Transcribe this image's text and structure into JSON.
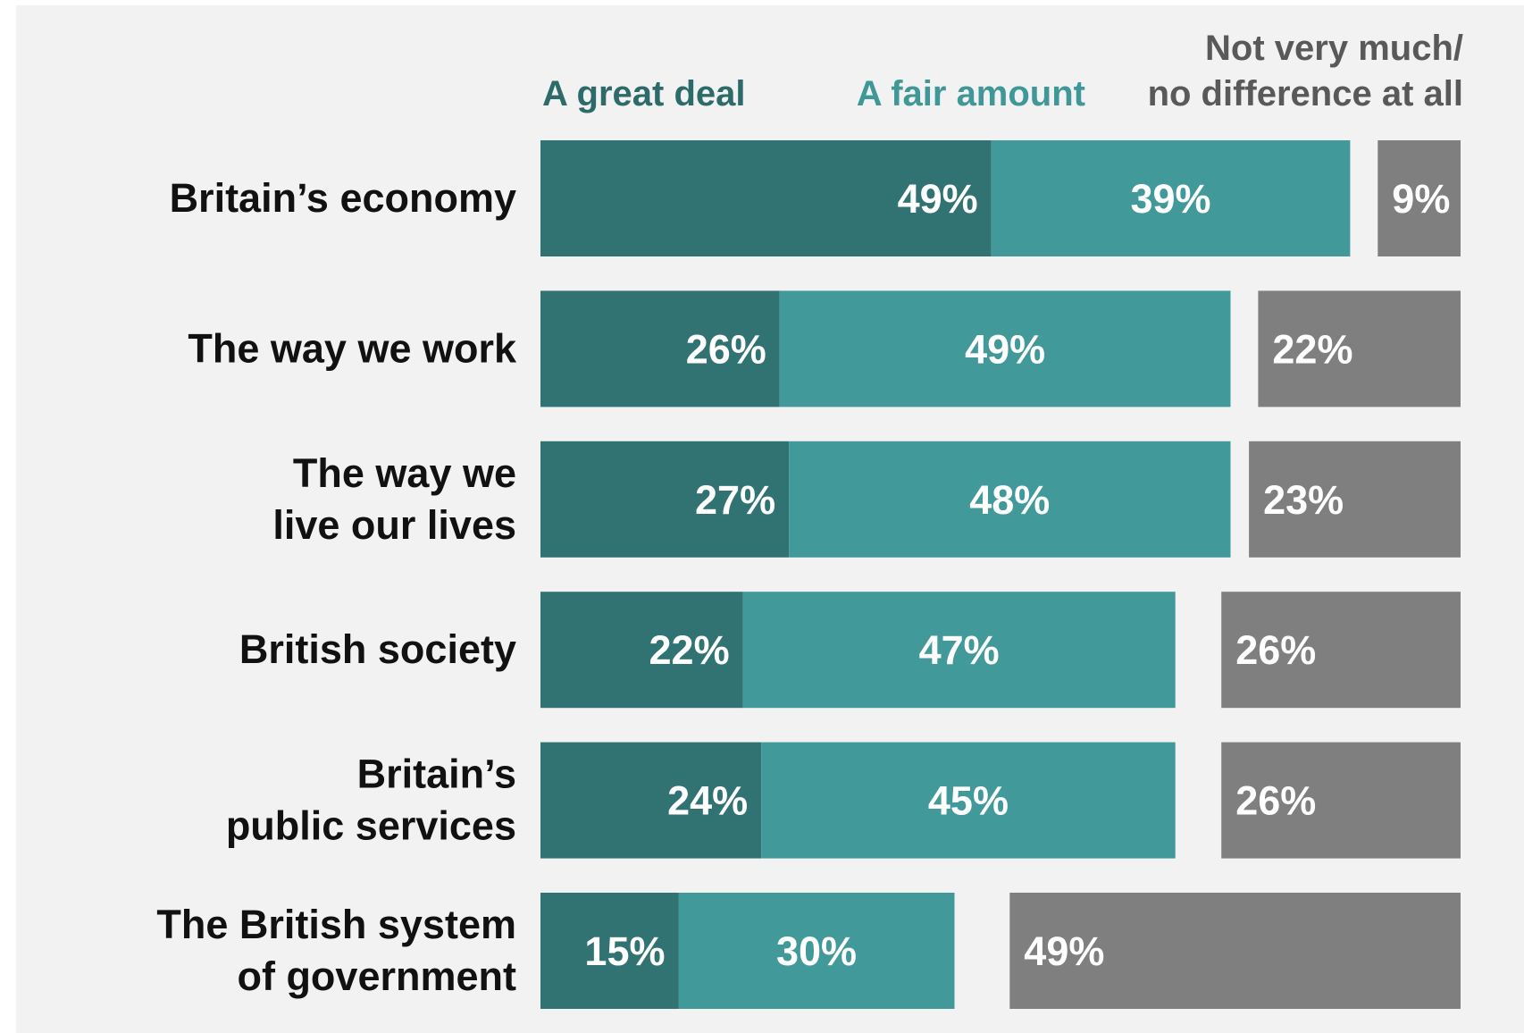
{
  "chart_data": {
    "type": "bar",
    "orientation": "horizontal",
    "stacked": true,
    "categories": [
      [
        "Britain’s economy"
      ],
      [
        "The way we work"
      ],
      [
        "The way we",
        "live our lives"
      ],
      [
        "British society"
      ],
      [
        "Britain’s",
        "public services"
      ],
      [
        "The British system",
        "of government"
      ]
    ],
    "series": [
      {
        "name": "A great deal",
        "color": "#317372",
        "values": [
          49,
          26,
          27,
          22,
          24,
          15
        ]
      },
      {
        "name": "A fair amount",
        "color": "#42999a",
        "values": [
          39,
          49,
          48,
          47,
          45,
          30
        ]
      },
      {
        "name": [
          "Not very much/",
          "no difference at all"
        ],
        "color": "#7f7f7f",
        "values": [
          9,
          22,
          23,
          26,
          26,
          49
        ]
      }
    ],
    "value_suffix": "%",
    "legend_placement": "top",
    "grid": false,
    "xlim": [
      0,
      100
    ],
    "background": "#f2f2f2"
  }
}
